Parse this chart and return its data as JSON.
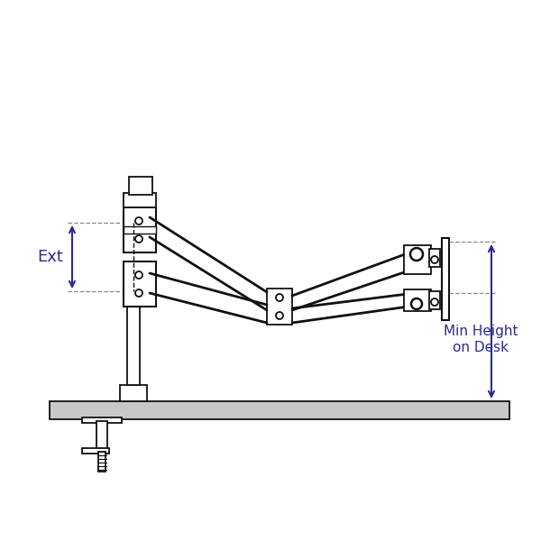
{
  "bg_color": "#ffffff",
  "line_color": "#111111",
  "blue_color": "#2b2b8f",
  "gray_color": "#888888",
  "desk_fill": "#c8c8c8",
  "fig_width": 6.0,
  "fig_height": 6.0,
  "annotation_ext": "Ext",
  "annotation_min": "Min Height\non Desk",
  "ext_fontsize": 13,
  "min_fontsize": 11
}
